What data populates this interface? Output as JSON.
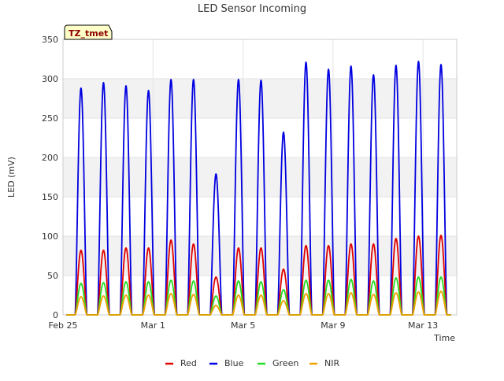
{
  "chart_data": {
    "type": "line",
    "title": "LED Sensor Incoming",
    "xlabel": "Time",
    "ylabel": "LED (mV)",
    "ylim": [
      0,
      350
    ],
    "xlim": [
      0,
      17.5
    ],
    "yticks": [
      0,
      50,
      100,
      150,
      200,
      250,
      300,
      350
    ],
    "xticks": [
      {
        "day": 0,
        "label": "Feb 25"
      },
      {
        "day": 4,
        "label": "Mar 1"
      },
      {
        "day": 8,
        "label": "Mar 5"
      },
      {
        "day": 12,
        "label": "Mar 9"
      },
      {
        "day": 16,
        "label": "Mar 13"
      }
    ],
    "grid": true,
    "banded_background": true,
    "legend_position": "bottom-center",
    "annotation": "TZ_tmet",
    "daily_peak_days": [
      0.8,
      1.8,
      2.8,
      3.8,
      4.8,
      5.8,
      6.8,
      7.8,
      8.8,
      9.8,
      10.8,
      11.8,
      12.8,
      13.8,
      14.8,
      15.8,
      16.8
    ],
    "series": [
      {
        "name": "Red",
        "color": "#e00000",
        "daily_peaks": [
          82,
          82,
          85,
          85,
          95,
          90,
          48,
          85,
          85,
          58,
          88,
          88,
          90,
          90,
          97,
          100,
          101
        ]
      },
      {
        "name": "Blue",
        "color": "#0000e0",
        "daily_peaks": [
          288,
          295,
          291,
          285,
          299,
          299,
          179,
          299,
          298,
          232,
          321,
          312,
          316,
          305,
          317,
          322,
          318
        ]
      },
      {
        "name": "Green",
        "color": "#22dd22",
        "daily_peaks": [
          40,
          41,
          42,
          42,
          44,
          43,
          24,
          43,
          42,
          32,
          44,
          44,
          45,
          43,
          47,
          48,
          48
        ]
      },
      {
        "name": "NIR",
        "color": "#f0a000",
        "daily_peaks": [
          23,
          24,
          25,
          25,
          27,
          26,
          12,
          25,
          25,
          18,
          27,
          27,
          28,
          26,
          28,
          29,
          30
        ]
      }
    ]
  }
}
